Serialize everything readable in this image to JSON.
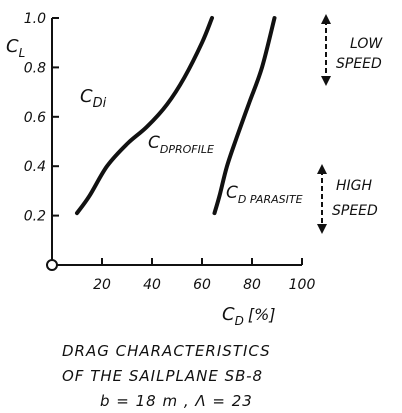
{
  "chart_data": {
    "type": "line",
    "xlabel": "C_D [%]",
    "ylabel": "C_L",
    "xlim": [
      0,
      100
    ],
    "ylim": [
      0,
      1.0
    ],
    "x_ticks": [
      "20",
      "40",
      "60",
      "80",
      "100"
    ],
    "y_ticks": [
      "0.2",
      "0.4",
      "0.6",
      "0.8",
      "1.0"
    ],
    "grid": false,
    "series": [
      {
        "name": "C_Di",
        "points": [
          [
            10,
            0.21
          ],
          [
            15,
            0.28
          ],
          [
            22,
            0.4
          ],
          [
            30,
            0.49
          ],
          [
            38,
            0.56
          ],
          [
            46,
            0.65
          ],
          [
            53,
            0.76
          ],
          [
            60,
            0.9
          ],
          [
            64,
            1.0
          ]
        ]
      },
      {
        "name": "C_D PROFILE / C_D PARASITE",
        "points": [
          [
            65,
            0.21
          ],
          [
            67,
            0.28
          ],
          [
            70,
            0.4
          ],
          [
            74,
            0.52
          ],
          [
            79,
            0.66
          ],
          [
            84,
            0.8
          ],
          [
            89,
            1.0
          ]
        ]
      }
    ],
    "annotations": [
      {
        "text": "C_Di",
        "base": "C",
        "sub": "Di"
      },
      {
        "text": "C_D PROFILE",
        "base": "C",
        "sub": "DPROFILE"
      },
      {
        "text": "C_D PARASITE",
        "base": "C",
        "sub": "D PARASITE"
      },
      {
        "text": "LOW SPEED",
        "lines": [
          "LOW",
          "SPEED"
        ]
      },
      {
        "text": "HIGH SPEED",
        "lines": [
          "HIGH",
          "SPEED"
        ]
      }
    ]
  },
  "axes": {
    "ylabel_base": "C",
    "ylabel_sub": "L",
    "xlabel_base": "C",
    "xlabel_sub": "D",
    "xlabel_unit": "[%]"
  },
  "caption": {
    "line1": "DRAG CHARACTERISTICS",
    "line2": "OF THE SAILPLANE SB-8",
    "line3": "b = 18 m ,   Λ = 23"
  }
}
